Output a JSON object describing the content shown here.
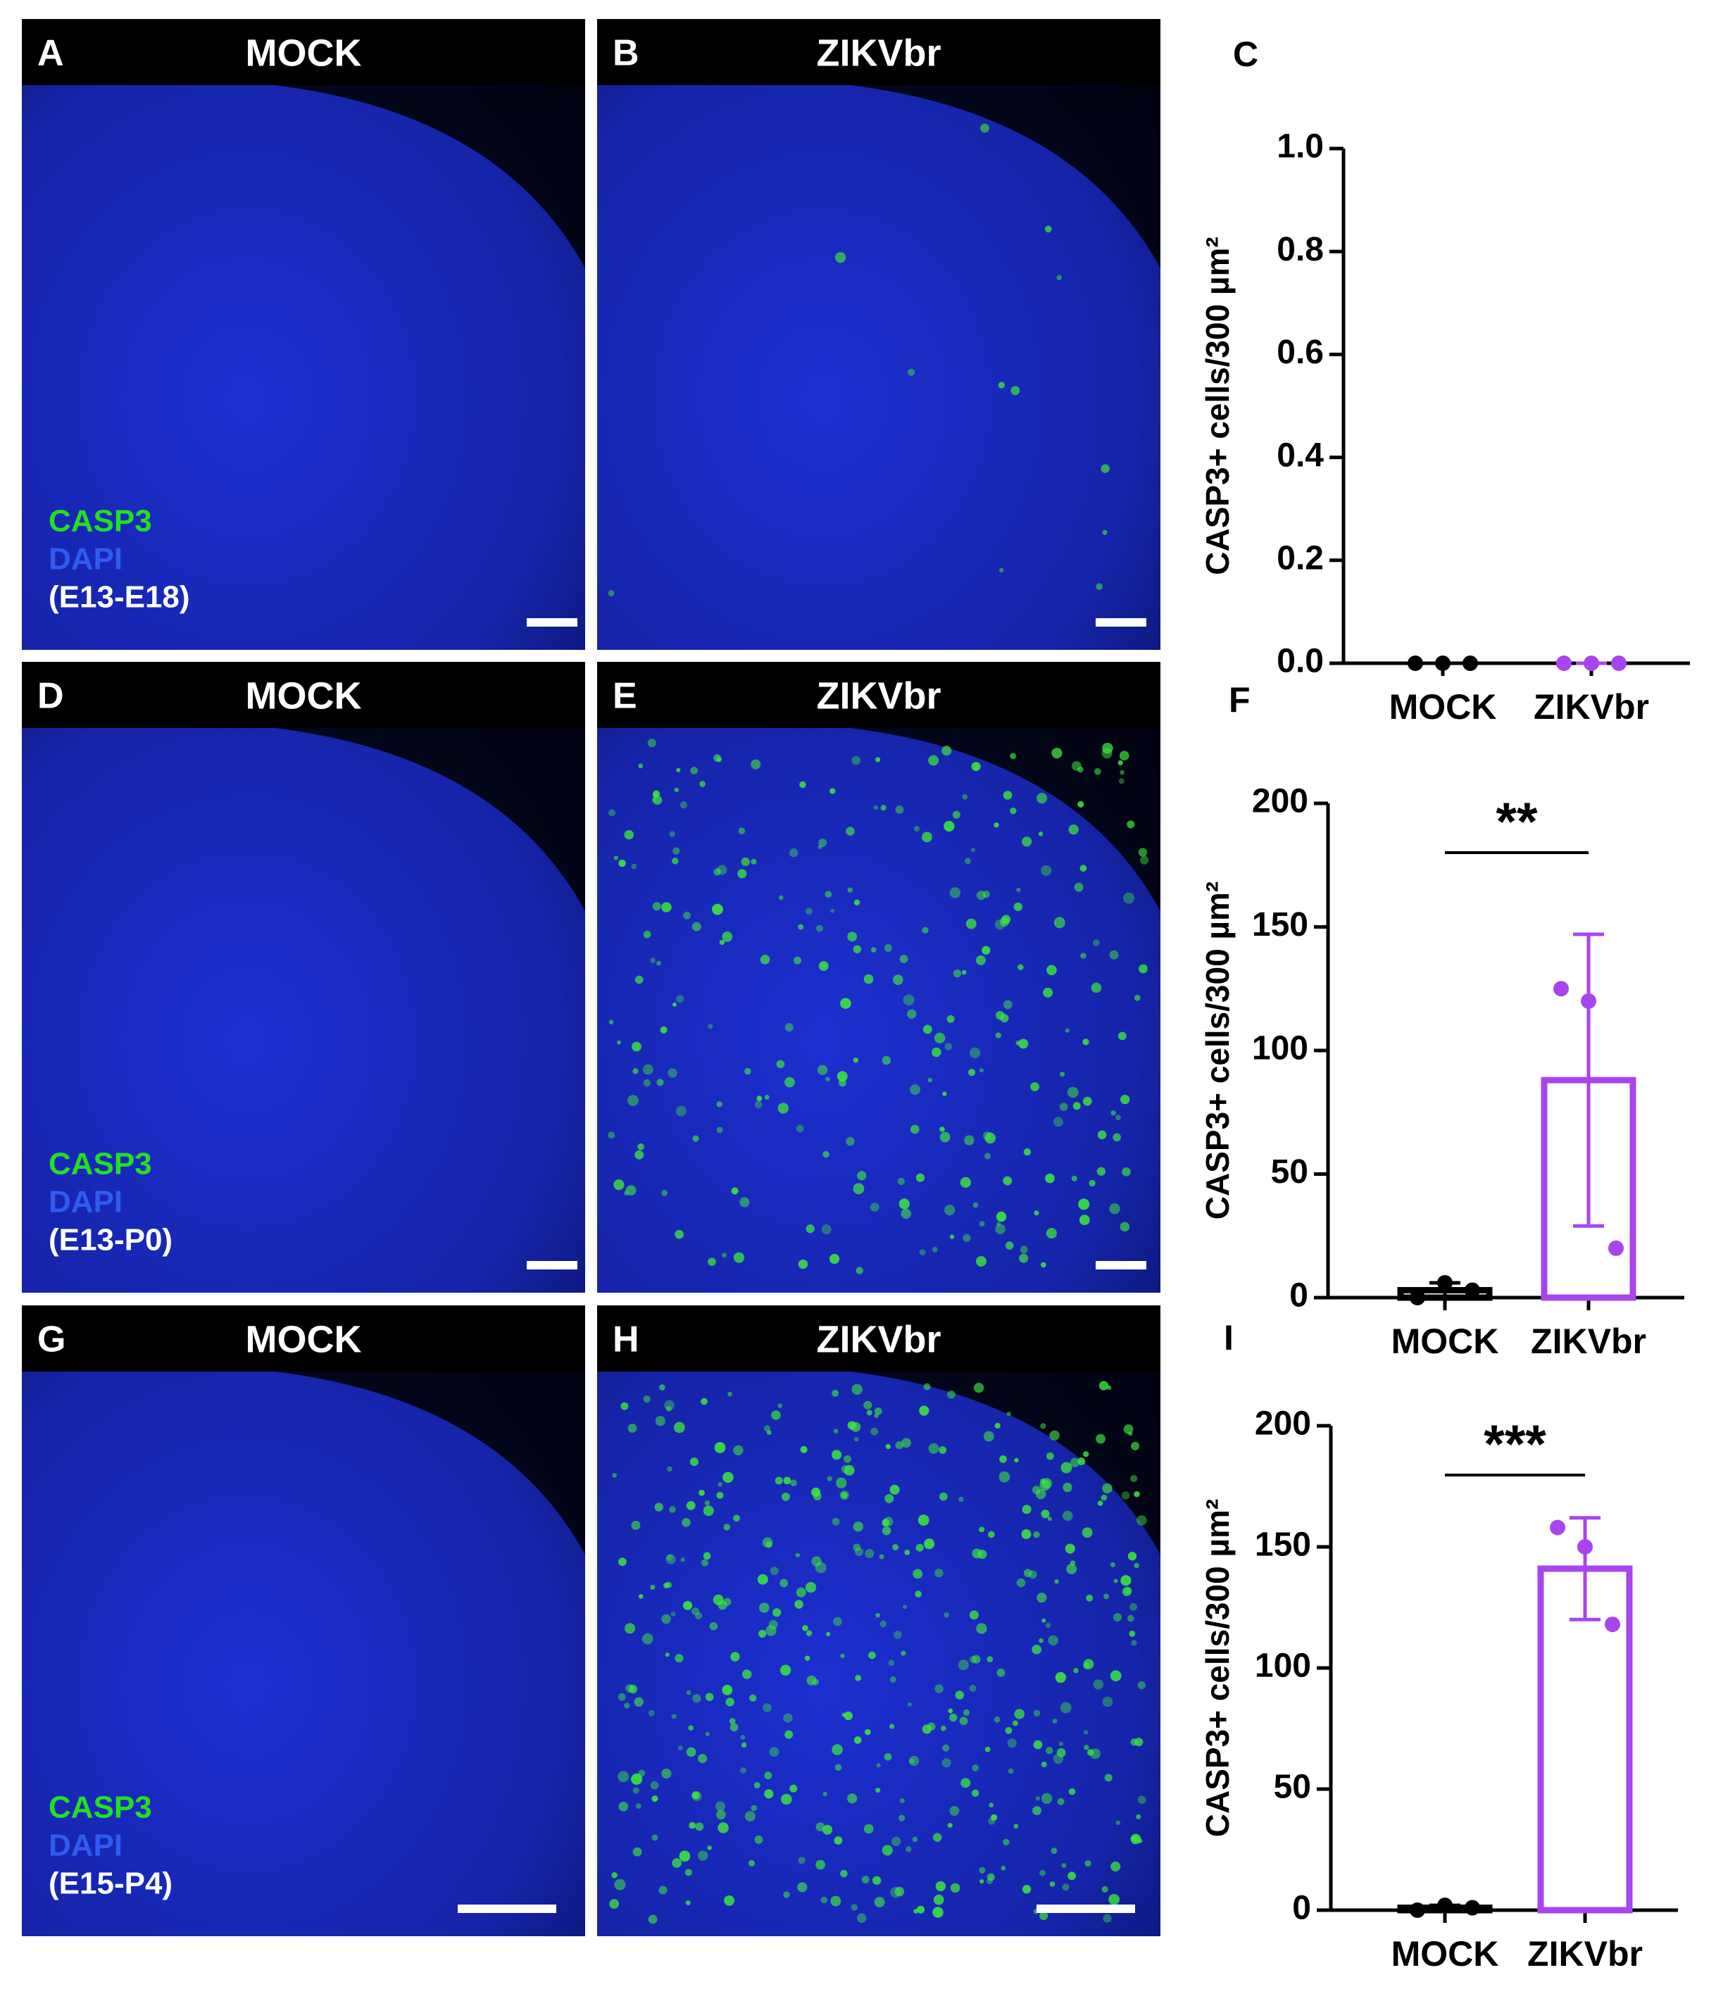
{
  "panels": [
    {
      "label": "A",
      "title": "MOCK",
      "legend": [
        "CASP3",
        "DAPI",
        "(E13-E18)"
      ]
    },
    {
      "label": "B",
      "title": "ZIKVbr"
    },
    {
      "label": "D",
      "title": "MOCK",
      "legend": [
        "CASP3",
        "DAPI",
        "(E13-P0)"
      ]
    },
    {
      "label": "E",
      "title": "ZIKVbr"
    },
    {
      "label": "G",
      "title": "MOCK",
      "legend": [
        "CASP3",
        "DAPI",
        "(E15-P4)"
      ]
    },
    {
      "label": "H",
      "title": "ZIKVbr"
    }
  ],
  "chart_data": [
    {
      "type": "bar",
      "label": "C",
      "ylabel": "CASP3+ cells/300 µm²",
      "categories": [
        "MOCK",
        "ZIKVbr"
      ],
      "values": [
        0,
        0
      ],
      "errors": [
        0,
        0
      ],
      "points": [
        [
          0,
          0,
          0
        ],
        [
          0,
          0,
          0
        ]
      ],
      "colors": [
        "#000000",
        "#a845ee"
      ],
      "ylim": [
        0,
        1
      ],
      "yticks": [
        {
          "value": 0,
          "label": "0.0"
        },
        0.2,
        0.4,
        0.6,
        0.8,
        {
          "value": 1,
          "label": "1.0"
        }
      ]
    },
    {
      "type": "bar",
      "label": "F",
      "ylabel": "CASP3+ cells/300 µm²",
      "categories": [
        "MOCK",
        "ZIKVbr"
      ],
      "values": [
        3,
        88
      ],
      "errors": [
        3,
        59
      ],
      "points": [
        [
          0,
          6,
          3
        ],
        [
          125,
          120,
          20
        ]
      ],
      "colors": [
        "#000000",
        "#a845ee"
      ],
      "ylim": [
        0,
        200
      ],
      "yticks": [
        0,
        50,
        100,
        150,
        200
      ],
      "significance": "**"
    },
    {
      "type": "bar",
      "label": "I",
      "ylabel": "CASP3+ cells/300 µm²",
      "categories": [
        "MOCK",
        "ZIKVbr"
      ],
      "values": [
        1,
        141
      ],
      "errors": [
        1,
        21
      ],
      "points": [
        [
          0,
          2,
          1
        ],
        [
          158,
          150,
          118
        ]
      ],
      "colors": [
        "#000000",
        "#a845ee"
      ],
      "ylim": [
        0,
        200
      ],
      "yticks": [
        0,
        50,
        100,
        150,
        200
      ],
      "significance": "***"
    }
  ]
}
